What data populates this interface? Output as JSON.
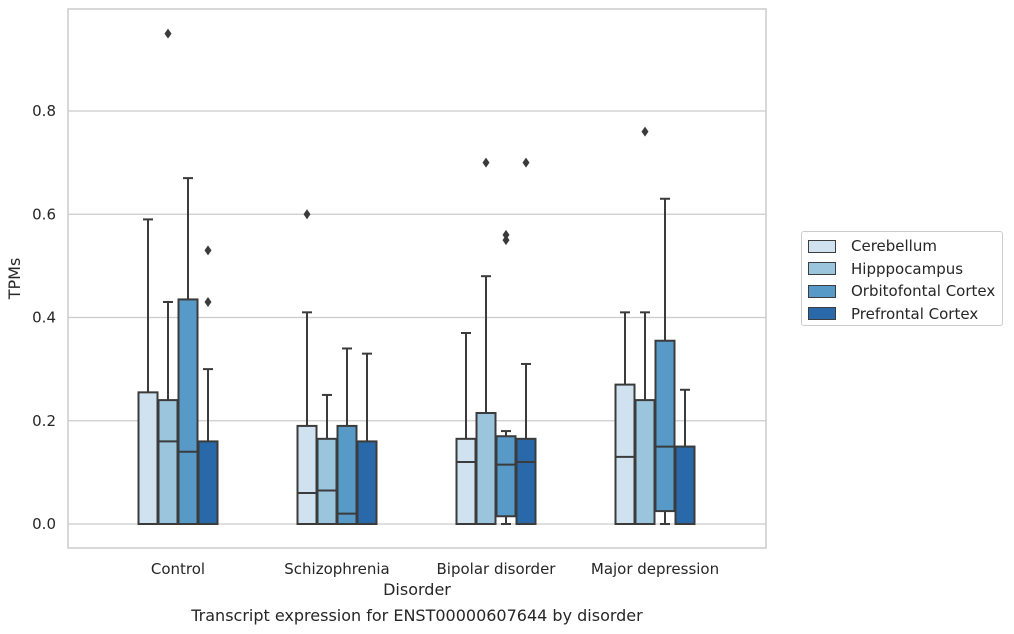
{
  "caption": "Transcript expression for ENST00000607644 by disorder",
  "chart_data": {
    "type": "box",
    "title": "",
    "xlabel": "Disorder",
    "ylabel": "TPMs",
    "ylim": [
      -0.045,
      1.0
    ],
    "yticks": [
      "0.0",
      "0.2",
      "0.4",
      "0.6",
      "0.8"
    ],
    "ytick_values": [
      0.0,
      0.2,
      0.4,
      0.6,
      0.8
    ],
    "grid": true,
    "legend_position": "right",
    "categories": [
      "Control",
      "Schizophrenia",
      "Bipolar disorder",
      "Major depression"
    ],
    "series": [
      {
        "name": "Cerebellum",
        "color": "#d0e1f0",
        "boxes": [
          {
            "whislo": 0.0,
            "q1": 0.0,
            "med": 0.0,
            "q3": 0.255,
            "whishi": 0.59,
            "fliers": []
          },
          {
            "whislo": 0.0,
            "q1": 0.0,
            "med": 0.06,
            "q3": 0.19,
            "whishi": 0.41,
            "fliers": [
              0.6
            ]
          },
          {
            "whislo": 0.0,
            "q1": 0.0,
            "med": 0.12,
            "q3": 0.165,
            "whishi": 0.37,
            "fliers": []
          },
          {
            "whislo": 0.0,
            "q1": 0.0,
            "med": 0.13,
            "q3": 0.27,
            "whishi": 0.41,
            "fliers": []
          }
        ]
      },
      {
        "name": "Hipppocampus",
        "color": "#9bc4dd",
        "boxes": [
          {
            "whislo": 0.0,
            "q1": 0.0,
            "med": 0.16,
            "q3": 0.24,
            "whishi": 0.43,
            "fliers": [
              0.95
            ]
          },
          {
            "whislo": 0.0,
            "q1": 0.0,
            "med": 0.065,
            "q3": 0.165,
            "whishi": 0.25,
            "fliers": []
          },
          {
            "whislo": 0.0,
            "q1": 0.0,
            "med": 0.0,
            "q3": 0.215,
            "whishi": 0.48,
            "fliers": [
              0.7
            ]
          },
          {
            "whislo": 0.0,
            "q1": 0.0,
            "med": 0.0,
            "q3": 0.24,
            "whishi": 0.41,
            "fliers": [
              0.76
            ]
          }
        ]
      },
      {
        "name": "Orbitofontal Cortex",
        "color": "#5799c7",
        "boxes": [
          {
            "whislo": 0.0,
            "q1": 0.0,
            "med": 0.14,
            "q3": 0.435,
            "whishi": 0.67,
            "fliers": []
          },
          {
            "whislo": 0.0,
            "q1": 0.0,
            "med": 0.02,
            "q3": 0.19,
            "whishi": 0.34,
            "fliers": []
          },
          {
            "whislo": 0.0,
            "q1": 0.015,
            "med": 0.115,
            "q3": 0.17,
            "whishi": 0.18,
            "fliers": [
              0.55,
              0.56
            ]
          },
          {
            "whislo": 0.0,
            "q1": 0.025,
            "med": 0.15,
            "q3": 0.355,
            "whishi": 0.63,
            "fliers": []
          }
        ]
      },
      {
        "name": "Prefrontal Cortex",
        "color": "#2a69a9",
        "boxes": [
          {
            "whislo": 0.0,
            "q1": 0.0,
            "med": 0.0,
            "q3": 0.16,
            "whishi": 0.3,
            "fliers": [
              0.43,
              0.53
            ]
          },
          {
            "whislo": 0.0,
            "q1": 0.0,
            "med": 0.0,
            "q3": 0.16,
            "whishi": 0.33,
            "fliers": []
          },
          {
            "whislo": 0.0,
            "q1": 0.0,
            "med": 0.12,
            "q3": 0.165,
            "whishi": 0.31,
            "fliers": [
              0.7
            ]
          },
          {
            "whislo": 0.0,
            "q1": 0.0,
            "med": 0.0,
            "q3": 0.15,
            "whishi": 0.26,
            "fliers": []
          }
        ]
      }
    ]
  }
}
